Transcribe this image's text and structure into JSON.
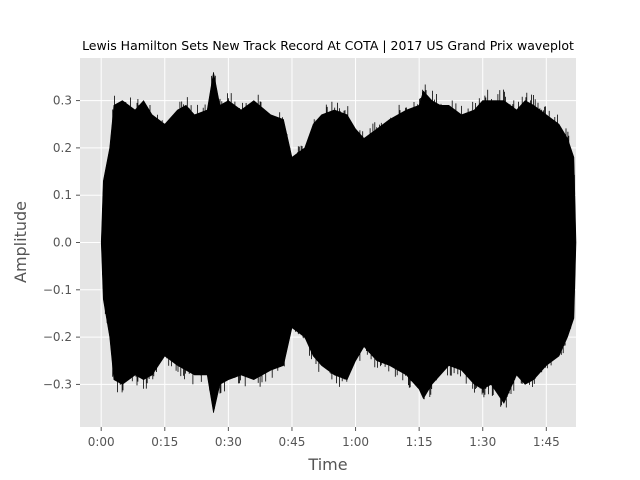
{
  "chart_data": {
    "type": "area",
    "title": "Lewis Hamilton Sets New Track Record At COTA | 2017 US Grand Prix waveplot",
    "xlabel": "Time",
    "ylabel": "Amplitude",
    "xlim": [
      -5,
      112
    ],
    "ylim": [
      -0.39,
      0.39
    ],
    "x_ticks": [
      0,
      15,
      30,
      45,
      60,
      75,
      90,
      105
    ],
    "x_tick_labels": [
      "0:00",
      "0:15",
      "0:30",
      "0:45",
      "1:00",
      "1:15",
      "1:30",
      "1:45"
    ],
    "y_ticks": [
      -0.3,
      -0.2,
      -0.1,
      0.0,
      0.1,
      0.2,
      0.3
    ],
    "y_tick_labels": [
      "−0.3",
      "−0.2",
      "−0.1",
      "0.0",
      "0.1",
      "0.2",
      "0.3"
    ],
    "grid": true,
    "background": "#e5e5e5",
    "grid_color": "#ffffff",
    "wave_color": "#000000",
    "duration_seconds": 112,
    "envelope": {
      "x": [
        0,
        0.5,
        2,
        3,
        5,
        8,
        10,
        12,
        15,
        18,
        20,
        22,
        25,
        26.5,
        28,
        30,
        33,
        36,
        40,
        43,
        45,
        48,
        50,
        52,
        55,
        58,
        60,
        62,
        65,
        68,
        70,
        72,
        75,
        76,
        78,
        80,
        82,
        85,
        88,
        90,
        92,
        95,
        98,
        100,
        102,
        105,
        108,
        110,
        111.5,
        112
      ],
      "max": [
        0.0,
        0.13,
        0.2,
        0.29,
        0.3,
        0.28,
        0.3,
        0.27,
        0.25,
        0.28,
        0.29,
        0.27,
        0.28,
        0.36,
        0.29,
        0.3,
        0.28,
        0.3,
        0.27,
        0.26,
        0.18,
        0.2,
        0.25,
        0.27,
        0.28,
        0.27,
        0.24,
        0.22,
        0.24,
        0.26,
        0.27,
        0.28,
        0.29,
        0.32,
        0.3,
        0.29,
        0.29,
        0.27,
        0.28,
        0.3,
        0.3,
        0.3,
        0.28,
        0.3,
        0.29,
        0.27,
        0.25,
        0.22,
        0.18,
        0.0
      ],
      "min": [
        0.0,
        -0.12,
        -0.2,
        -0.29,
        -0.3,
        -0.28,
        -0.29,
        -0.28,
        -0.24,
        -0.26,
        -0.27,
        -0.28,
        -0.28,
        -0.36,
        -0.3,
        -0.29,
        -0.28,
        -0.29,
        -0.27,
        -0.26,
        -0.18,
        -0.2,
        -0.24,
        -0.26,
        -0.28,
        -0.29,
        -0.25,
        -0.22,
        -0.25,
        -0.26,
        -0.27,
        -0.28,
        -0.31,
        -0.33,
        -0.3,
        -0.28,
        -0.26,
        -0.27,
        -0.3,
        -0.31,
        -0.3,
        -0.34,
        -0.28,
        -0.3,
        -0.29,
        -0.26,
        -0.24,
        -0.2,
        -0.16,
        0.0
      ]
    }
  }
}
